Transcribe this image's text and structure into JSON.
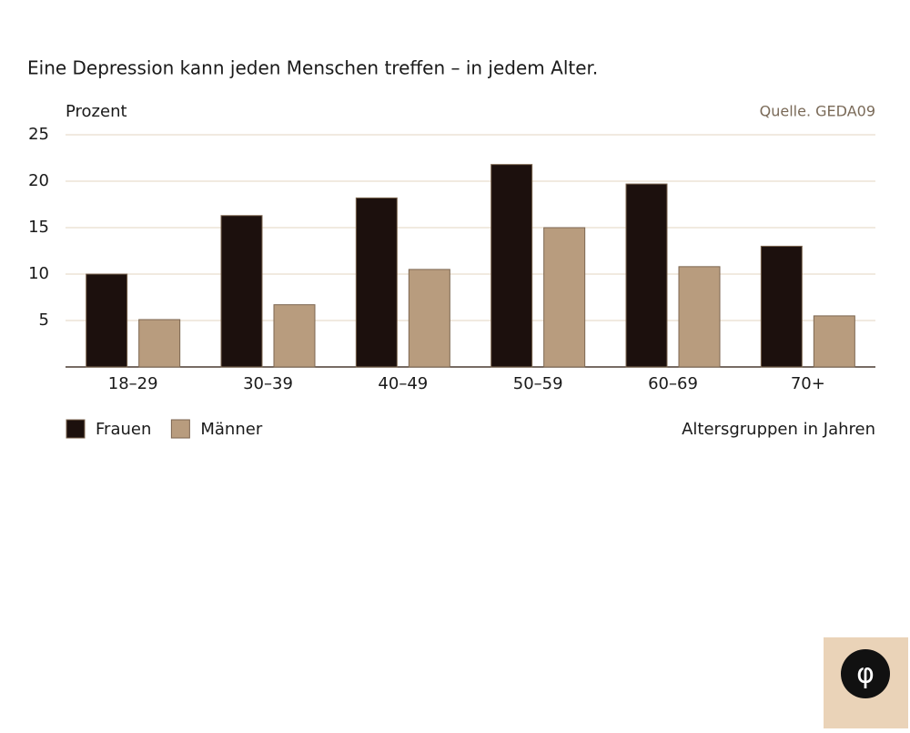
{
  "chart_data": {
    "type": "bar",
    "title": "Eine Depression kann jeden Menschen treffen – in jedem Alter.",
    "y_label": "Prozent",
    "source": "Quelle. GEDA09",
    "x_label": "Altersgruppen in Jahren",
    "categories": [
      "18–29",
      "30–39",
      "40–49",
      "50–59",
      "60–69",
      "70+"
    ],
    "series": [
      {
        "name": "Frauen",
        "color": "#1c100d",
        "values": [
          10,
          16.3,
          18.2,
          21.8,
          19.7,
          13
        ]
      },
      {
        "name": "Männer",
        "color": "#b89c7e",
        "values": [
          5.1,
          6.7,
          10.5,
          15,
          10.8,
          5.5
        ]
      }
    ],
    "ylim": [
      0,
      25
    ],
    "yticks": [
      5,
      10,
      15,
      20,
      25
    ],
    "grid": true
  },
  "logo": "φ"
}
